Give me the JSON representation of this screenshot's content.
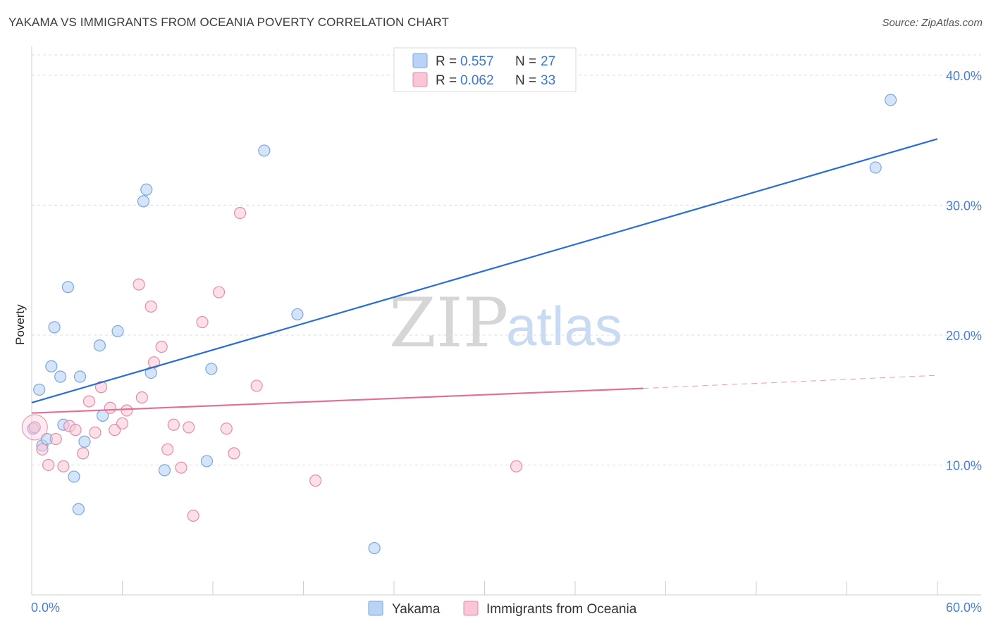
{
  "header": {
    "title": "YAKAMA VS IMMIGRANTS FROM OCEANIA POVERTY CORRELATION CHART",
    "source": "Source: ZipAtlas.com"
  },
  "watermark": {
    "zip": "ZIP",
    "atlas": "atlas"
  },
  "legend": {
    "rows": [
      {
        "r_label": "R =",
        "r_value": "0.557",
        "n_label": "N =",
        "n_value": "27"
      },
      {
        "r_label": "R =",
        "r_value": "0.062",
        "n_label": "N =",
        "n_value": "33"
      }
    ]
  },
  "chart_data": {
    "type": "scatter",
    "title": "YAKAMA VS IMMIGRANTS FROM OCEANIA POVERTY CORRELATION CHART",
    "ylabel": "Poverty",
    "xlabel": "",
    "xlim": [
      0,
      60
    ],
    "ylim": [
      0,
      42
    ],
    "x_tick_labels": [
      "0.0%",
      "60.0%"
    ],
    "y_ticks": [
      10,
      20,
      30,
      40
    ],
    "y_tick_labels": [
      "10.0%",
      "20.0%",
      "30.0%",
      "40.0%"
    ],
    "colors": {
      "yakama_fill": "#b8d3f5",
      "yakama_stroke": "#7aa6e0",
      "yakama_line": "#2a6fcf",
      "oceania_fill": "#f8c6d6",
      "oceania_stroke": "#e88aa8",
      "oceania_line": "#e0709a",
      "axis_label": "#4a7fd0"
    },
    "series": [
      {
        "name": "Yakama",
        "points": [
          [
            0.1,
            12.8
          ],
          [
            0.5,
            15.8
          ],
          [
            0.7,
            11.5
          ],
          [
            1.0,
            12.0
          ],
          [
            1.3,
            17.6
          ],
          [
            1.5,
            20.6
          ],
          [
            1.9,
            16.8
          ],
          [
            2.1,
            13.1
          ],
          [
            2.4,
            23.7
          ],
          [
            2.8,
            9.1
          ],
          [
            3.1,
            6.6
          ],
          [
            3.2,
            16.8
          ],
          [
            3.5,
            11.8
          ],
          [
            4.5,
            19.2
          ],
          [
            4.7,
            13.8
          ],
          [
            5.7,
            20.3
          ],
          [
            7.4,
            30.3
          ],
          [
            7.6,
            31.2
          ],
          [
            7.9,
            17.1
          ],
          [
            8.8,
            9.6
          ],
          [
            11.6,
            10.3
          ],
          [
            11.9,
            17.4
          ],
          [
            15.4,
            34.2
          ],
          [
            17.6,
            21.6
          ],
          [
            22.7,
            3.6
          ],
          [
            55.9,
            32.9
          ],
          [
            56.9,
            38.1
          ]
        ],
        "trend": {
          "x0": 0,
          "y0": 14.8,
          "x1": 60,
          "y1": 35.1
        }
      },
      {
        "name": "Immigrants from Oceania",
        "points": [
          [
            0.2,
            12.9
          ],
          [
            0.7,
            11.2
          ],
          [
            1.1,
            10.0
          ],
          [
            1.6,
            12.0
          ],
          [
            2.1,
            9.9
          ],
          [
            2.5,
            13.0
          ],
          [
            2.9,
            12.7
          ],
          [
            3.4,
            10.9
          ],
          [
            3.8,
            14.9
          ],
          [
            4.2,
            12.5
          ],
          [
            4.6,
            16.0
          ],
          [
            5.2,
            14.4
          ],
          [
            5.5,
            12.7
          ],
          [
            6.0,
            13.2
          ],
          [
            6.3,
            14.2
          ],
          [
            7.1,
            23.9
          ],
          [
            7.3,
            15.2
          ],
          [
            7.9,
            22.2
          ],
          [
            8.1,
            17.9
          ],
          [
            8.6,
            19.1
          ],
          [
            9.0,
            11.2
          ],
          [
            9.4,
            13.1
          ],
          [
            9.9,
            9.8
          ],
          [
            10.4,
            12.9
          ],
          [
            10.7,
            6.1
          ],
          [
            11.3,
            21.0
          ],
          [
            12.4,
            23.3
          ],
          [
            12.9,
            12.8
          ],
          [
            13.4,
            10.9
          ],
          [
            13.8,
            29.4
          ],
          [
            14.9,
            16.1
          ],
          [
            18.8,
            8.8
          ],
          [
            32.1,
            9.9
          ]
        ],
        "trend": {
          "x0": 0,
          "y0": 14.0,
          "x1": 40.5,
          "y1": 15.9,
          "x_dash_end": 60,
          "y_dash_end": 16.9
        }
      }
    ],
    "bottom_legend": [
      "Yakama",
      "Immigrants from Oceania"
    ]
  }
}
